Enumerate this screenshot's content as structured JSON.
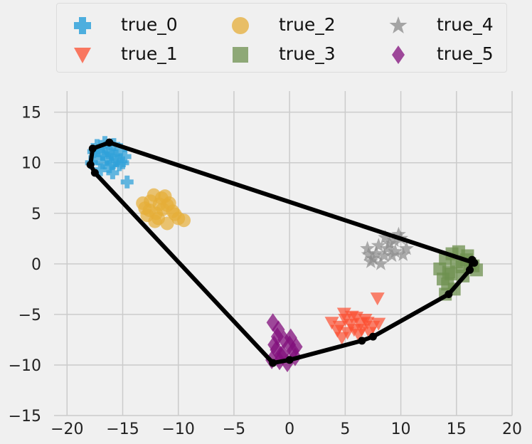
{
  "chart_data": {
    "type": "scatter",
    "title": "",
    "xlabel": "",
    "ylabel": "",
    "xlim": [
      -22,
      20
    ],
    "ylim": [
      -15,
      18
    ],
    "grid": true,
    "x_ticks": [
      -20,
      -15,
      -10,
      -5,
      0,
      5,
      10,
      15,
      20
    ],
    "y_ticks": [
      -15,
      -10,
      -5,
      0,
      5,
      10,
      15
    ],
    "x_tick_labels": [
      "−20",
      "−15",
      "−10",
      "−5",
      "0",
      "5",
      "10",
      "15",
      "20"
    ],
    "y_tick_labels": [
      "−15",
      "−10",
      "−5",
      "0",
      "5",
      "10",
      "15"
    ],
    "legend_position": "top",
    "series": [
      {
        "name": "true_0",
        "marker": "plus",
        "color": "#30a2da",
        "points": [
          [
            -17.5,
            10.5
          ],
          [
            -17.2,
            11.2
          ],
          [
            -16.8,
            10.0
          ],
          [
            -16.5,
            11.5
          ],
          [
            -16.2,
            9.6
          ],
          [
            -16.0,
            10.8
          ],
          [
            -15.8,
            11.8
          ],
          [
            -15.5,
            10.2
          ],
          [
            -17.0,
            9.3
          ],
          [
            -15.3,
            9.8
          ],
          [
            -16.6,
            12.0
          ],
          [
            -17.8,
            10.0
          ],
          [
            -15.9,
            9.0
          ],
          [
            -16.4,
            10.5
          ],
          [
            -14.8,
            10.6
          ],
          [
            -15.2,
            11.3
          ],
          [
            -17.3,
            11.7
          ],
          [
            -16.0,
            9.9
          ],
          [
            -14.6,
            8.1
          ],
          [
            -16.8,
            10.8
          ],
          [
            -15.6,
            10.7
          ],
          [
            -16.3,
            11.0
          ],
          [
            -15.0,
            10.0
          ],
          [
            -17.6,
            11.1
          ]
        ]
      },
      {
        "name": "true_1",
        "marker": "triangle-down",
        "color": "#fc4f30",
        "points": [
          [
            3.8,
            -5.8
          ],
          [
            4.5,
            -6.2
          ],
          [
            5.0,
            -5.5
          ],
          [
            5.5,
            -6.0
          ],
          [
            6.0,
            -5.3
          ],
          [
            6.5,
            -6.5
          ],
          [
            7.0,
            -5.8
          ],
          [
            7.5,
            -6.2
          ],
          [
            5.2,
            -6.8
          ],
          [
            6.2,
            -7.0
          ],
          [
            4.9,
            -4.9
          ],
          [
            6.8,
            -5.5
          ],
          [
            5.8,
            -6.5
          ],
          [
            7.2,
            -6.8
          ],
          [
            7.9,
            -3.4
          ],
          [
            4.3,
            -6.6
          ],
          [
            6.4,
            -5.9
          ],
          [
            5.6,
            -5.2
          ],
          [
            8.0,
            -5.9
          ],
          [
            4.7,
            -7.3
          ]
        ]
      },
      {
        "name": "true_2",
        "marker": "circle",
        "color": "#e5ae38",
        "points": [
          [
            -13.0,
            5.5
          ],
          [
            -12.5,
            6.2
          ],
          [
            -12.0,
            5.0
          ],
          [
            -11.5,
            6.5
          ],
          [
            -11.0,
            5.8
          ],
          [
            -10.5,
            5.2
          ],
          [
            -11.8,
            4.5
          ],
          [
            -12.8,
            4.8
          ],
          [
            -10.0,
            4.5
          ],
          [
            -9.5,
            4.3
          ],
          [
            -11.0,
            4.0
          ],
          [
            -12.2,
            6.8
          ],
          [
            -11.4,
            5.4
          ],
          [
            -10.8,
            6.0
          ],
          [
            -13.2,
            6.0
          ],
          [
            -12.6,
            5.3
          ],
          [
            -11.7,
            5.9
          ],
          [
            -10.3,
            4.9
          ],
          [
            -11.2,
            6.7
          ],
          [
            -12.1,
            4.2
          ]
        ]
      },
      {
        "name": "true_3",
        "marker": "square",
        "color": "#6d904f",
        "points": [
          [
            13.5,
            -0.5
          ],
          [
            14.0,
            0.5
          ],
          [
            14.5,
            -1.0
          ],
          [
            15.0,
            0.2
          ],
          [
            15.5,
            -0.3
          ],
          [
            16.0,
            0.8
          ],
          [
            16.5,
            -0.2
          ],
          [
            14.2,
            -2.0
          ],
          [
            15.2,
            1.2
          ],
          [
            16.2,
            0.0
          ],
          [
            14.8,
            -2.5
          ],
          [
            13.8,
            -1.5
          ],
          [
            15.6,
            -1.2
          ],
          [
            14.6,
            1.0
          ],
          [
            16.8,
            -0.6
          ],
          [
            14.0,
            -3.0
          ],
          [
            15.9,
            0.4
          ],
          [
            14.3,
            -0.8
          ]
        ]
      },
      {
        "name": "true_4",
        "marker": "star",
        "color": "#8b8b8b",
        "points": [
          [
            7.0,
            1.5
          ],
          [
            7.5,
            0.5
          ],
          [
            8.0,
            1.8
          ],
          [
            8.5,
            0.8
          ],
          [
            9.0,
            2.0
          ],
          [
            9.5,
            1.2
          ],
          [
            10.0,
            2.5
          ],
          [
            10.5,
            1.5
          ],
          [
            8.2,
            0.0
          ],
          [
            9.2,
            0.8
          ],
          [
            7.8,
            1.0
          ],
          [
            9.8,
            2.9
          ],
          [
            8.8,
            1.5
          ],
          [
            7.3,
            0.2
          ],
          [
            10.2,
            0.9
          ],
          [
            9.4,
            2.3
          ],
          [
            8.6,
            2.6
          ],
          [
            7.1,
            0.9
          ]
        ]
      },
      {
        "name": "true_5",
        "marker": "diamond",
        "color": "#810f7c",
        "points": [
          [
            -1.5,
            -5.8
          ],
          [
            -1.0,
            -6.5
          ],
          [
            -0.5,
            -7.5
          ],
          [
            -1.2,
            -8.5
          ],
          [
            -0.8,
            -9.0
          ],
          [
            0.0,
            -8.0
          ],
          [
            -1.6,
            -9.5
          ],
          [
            0.5,
            -9.2
          ],
          [
            -0.2,
            -9.8
          ],
          [
            -1.1,
            -7.2
          ],
          [
            0.3,
            -8.6
          ],
          [
            -0.6,
            -8.9
          ],
          [
            -1.4,
            -8.0
          ],
          [
            0.1,
            -7.3
          ],
          [
            -0.9,
            -9.6
          ],
          [
            0.6,
            -8.2
          ]
        ]
      },
      {
        "name": "",
        "marker": "line-dot",
        "color": "#000000",
        "points": [
          [
            -16.2,
            12.0
          ],
          [
            16.6,
            0.1
          ],
          [
            16.4,
            0.4
          ],
          [
            16.2,
            -0.6
          ],
          [
            14.3,
            -3.0
          ],
          [
            7.5,
            -7.2
          ],
          [
            6.5,
            -7.6
          ],
          [
            0.0,
            -9.5
          ],
          [
            -1.5,
            -9.8
          ],
          [
            -17.5,
            9.0
          ],
          [
            -17.9,
            9.8
          ],
          [
            -17.7,
            11.4
          ],
          [
            -16.2,
            12.0
          ]
        ]
      }
    ]
  },
  "legend": {
    "items": [
      {
        "label": "true_0",
        "icon": "plus-icon"
      },
      {
        "label": "true_1",
        "icon": "triangle-down-icon"
      },
      {
        "label": "true_2",
        "icon": "circle-icon"
      },
      {
        "label": "true_3",
        "icon": "square-icon"
      },
      {
        "label": "true_4",
        "icon": "star-icon"
      },
      {
        "label": "true_5",
        "icon": "diamond-icon"
      }
    ]
  }
}
